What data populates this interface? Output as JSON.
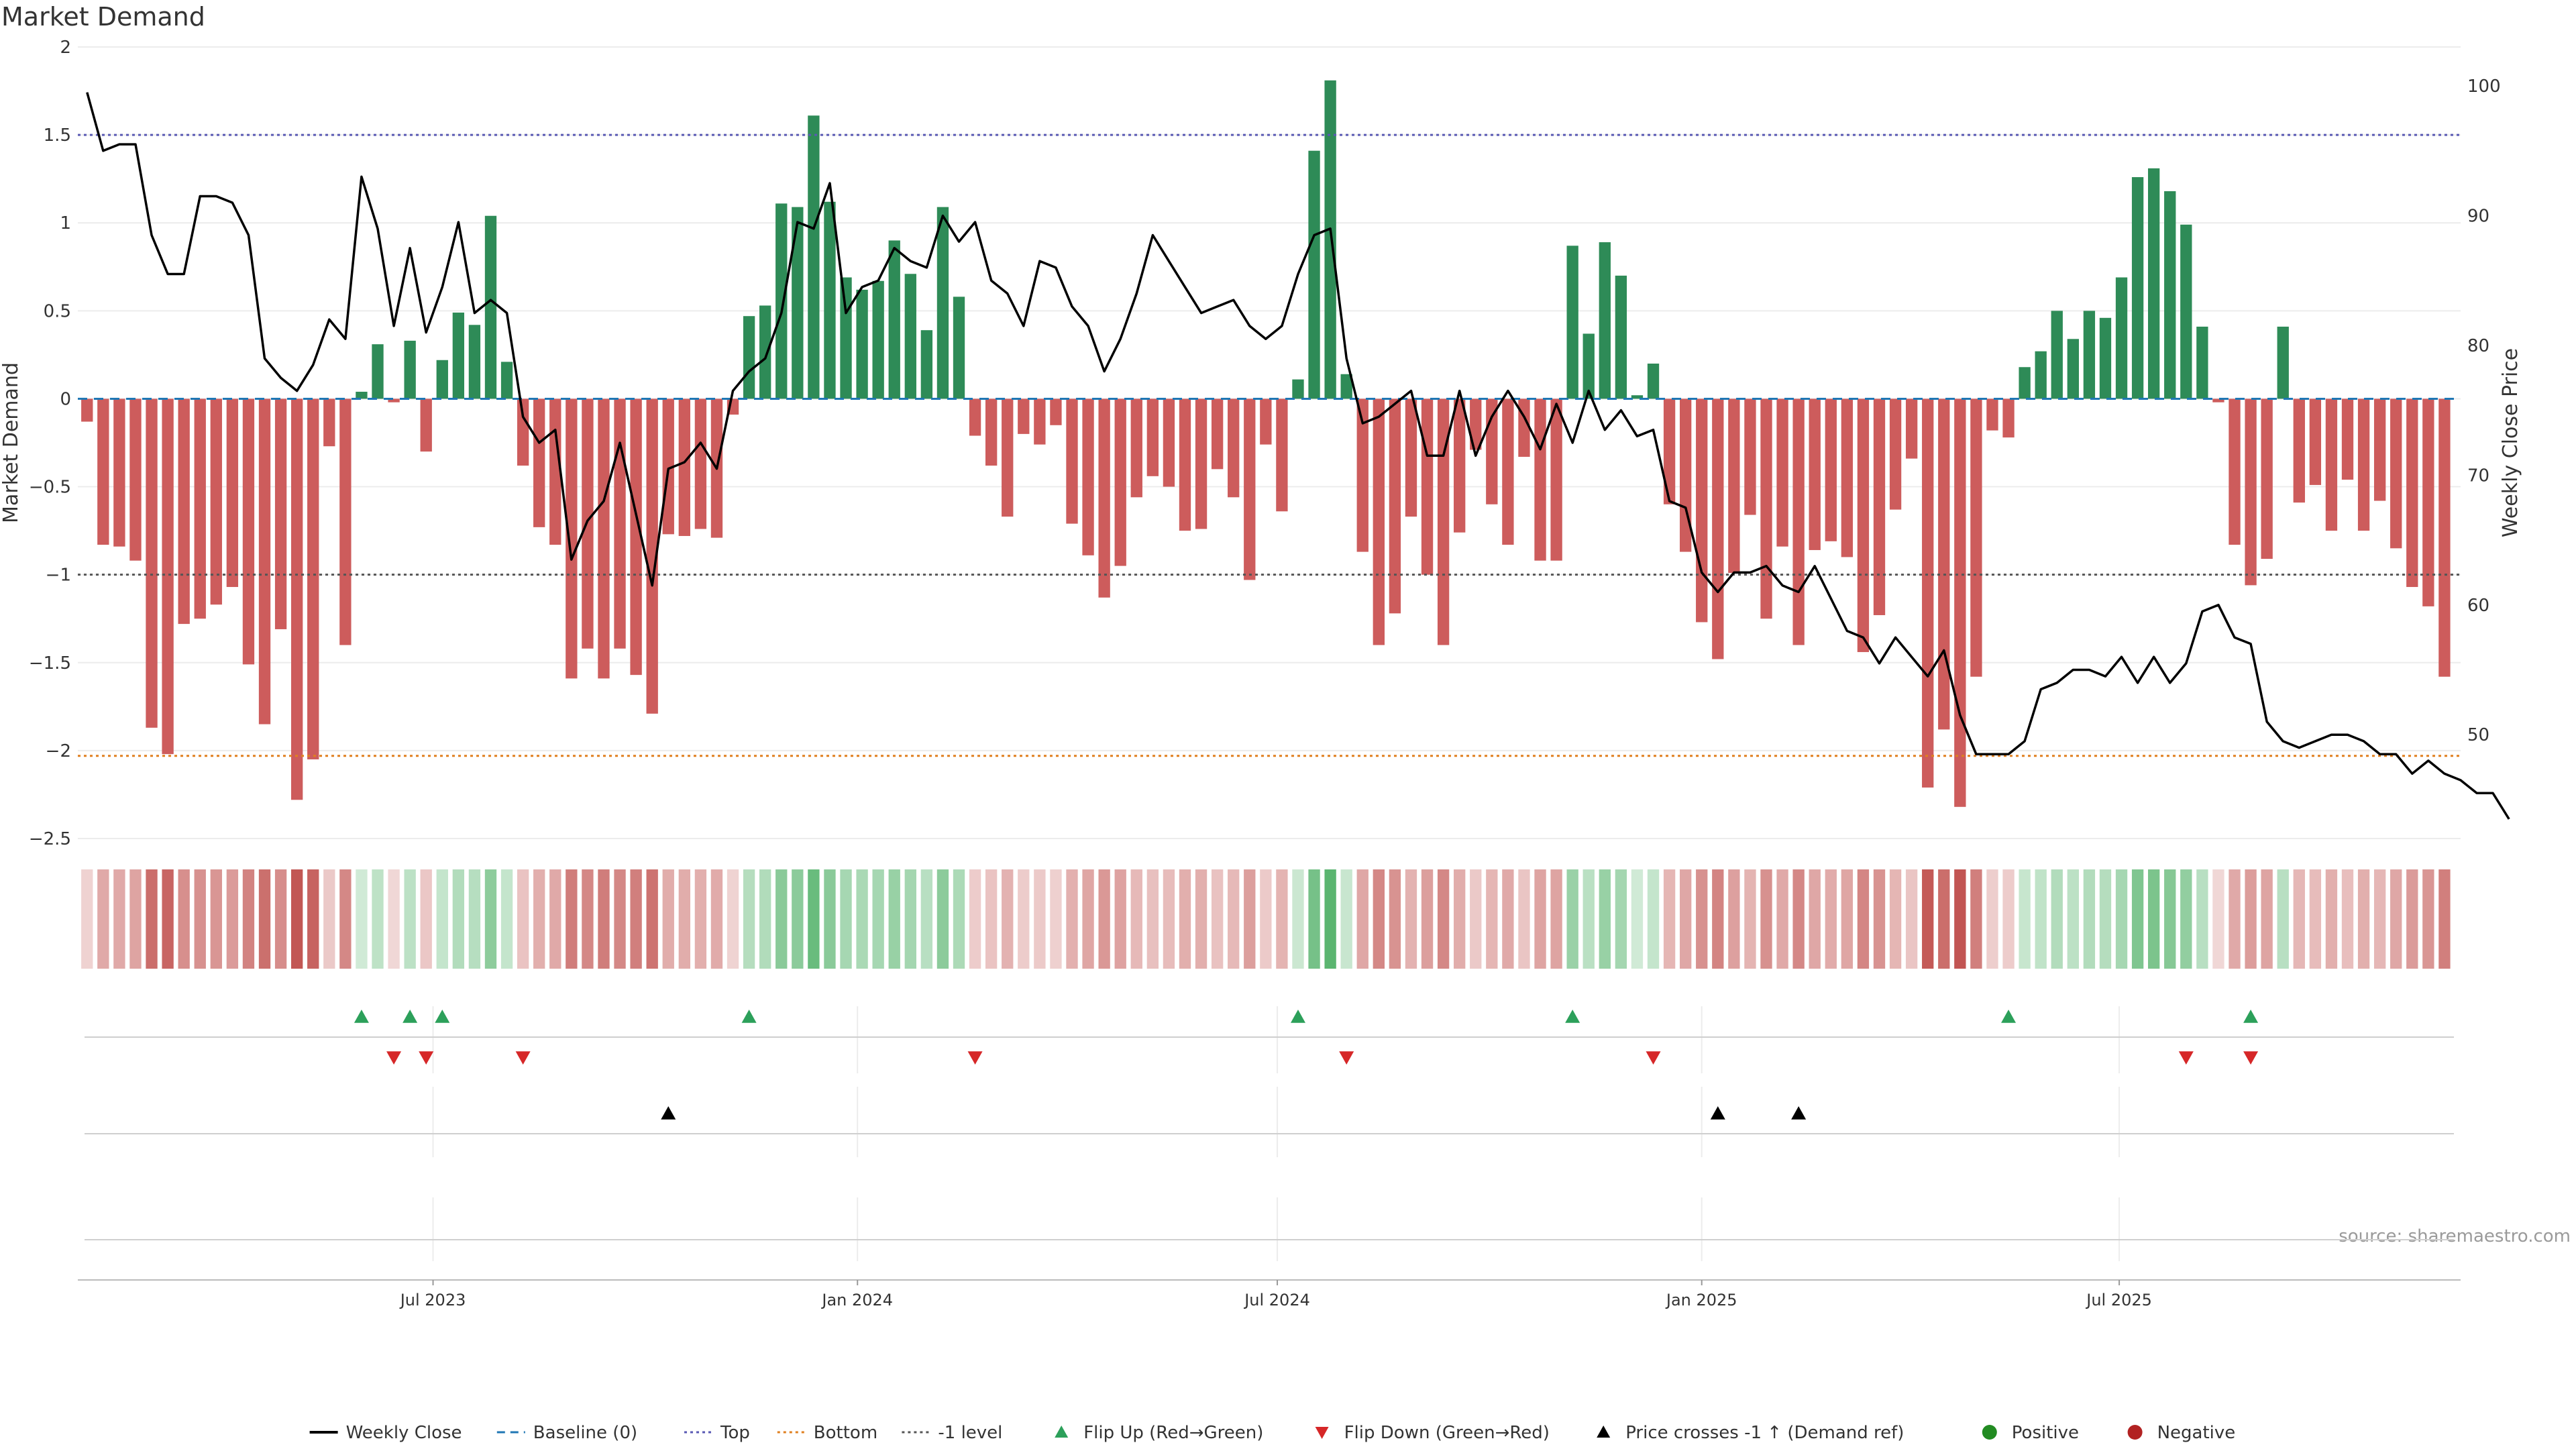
{
  "chart_data": {
    "type": "bar",
    "title": "Market Demand",
    "ylabel": "Market Demand",
    "y2label": "Weekly Close Price",
    "ylim": [
      -2.5,
      2
    ],
    "y2lim": [
      42,
      103
    ],
    "yticks": [
      2,
      1.5,
      1,
      0.5,
      0,
      -0.5,
      -1,
      -1.5,
      -2,
      -2.5
    ],
    "ytick_labels": [
      "2",
      "1.5",
      "1",
      "0.5",
      "0",
      "−0.5",
      "−1",
      "−1.5",
      "−2",
      "−2.5"
    ],
    "y2ticks": [
      100,
      90,
      80,
      70,
      60,
      50
    ],
    "y2tick_labels": [
      "100",
      "90",
      "80",
      "70",
      "60",
      "50"
    ],
    "xlim": [
      "2023-01-28",
      "2025-11-26"
    ],
    "xticks": [
      "2023-07-01",
      "2024-01-01",
      "2024-07-01",
      "2025-01-01",
      "2025-07-01"
    ],
    "xtick_labels": [
      "Jul 2023",
      "Jan 2024",
      "Jul 2024",
      "Jan 2025",
      "Jul 2025"
    ],
    "start_week": "2023-02-01",
    "reference_lines": {
      "top": 1.5,
      "bottom": -2.03,
      "minus_one": -1,
      "baseline": 0
    },
    "demand": [
      -0.13,
      -0.83,
      -0.84,
      -0.92,
      -1.87,
      -2.02,
      -1.28,
      -1.25,
      -1.17,
      -1.07,
      -1.51,
      -1.85,
      -1.31,
      -2.28,
      -2.05,
      -0.27,
      -1.4,
      0.04,
      0.31,
      -0.02,
      0.33,
      -0.3,
      0.22,
      0.49,
      0.42,
      1.04,
      0.21,
      -0.38,
      -0.73,
      -0.83,
      -1.59,
      -1.42,
      -1.59,
      -1.42,
      -1.57,
      -1.79,
      -0.77,
      -0.78,
      -0.74,
      -0.79,
      -0.09,
      0.47,
      0.53,
      1.11,
      1.09,
      1.61,
      1.12,
      0.69,
      0.62,
      0.67,
      0.9,
      0.71,
      0.39,
      1.09,
      0.58,
      -0.21,
      -0.38,
      -0.67,
      -0.2,
      -0.26,
      -0.15,
      -0.71,
      -0.89,
      -1.13,
      -0.95,
      -0.56,
      -0.44,
      -0.5,
      -0.75,
      -0.74,
      -0.4,
      -0.56,
      -1.03,
      -0.26,
      -0.64,
      0.11,
      1.41,
      1.81,
      0.14,
      -0.87,
      -1.4,
      -1.22,
      -0.67,
      -1.0,
      -1.4,
      -0.76,
      -0.29,
      -0.6,
      -0.83,
      -0.33,
      -0.92,
      -0.92,
      0.87,
      0.37,
      0.89,
      0.7,
      0.02,
      0.2,
      -0.6,
      -0.87,
      -1.27,
      -1.48,
      -0.99,
      -0.66,
      -1.25,
      -0.84,
      -1.4,
      -0.86,
      -0.81,
      -0.9,
      -1.44,
      -1.23,
      -0.63,
      -0.34,
      -2.21,
      -1.88,
      -2.32,
      -1.58,
      -0.18,
      -0.22,
      0.18,
      0.27,
      0.5,
      0.34,
      0.5,
      0.46,
      0.69,
      1.26,
      1.31,
      1.18,
      0.99,
      0.41,
      -0.02,
      -0.83,
      -1.06,
      -0.91,
      0.41,
      -0.59,
      -0.49,
      -0.75,
      -0.46,
      -0.75,
      -0.58,
      -0.85,
      -1.07,
      -1.18,
      -1.58
    ],
    "close": [
      99.5,
      95,
      95.5,
      95.5,
      88.5,
      85.5,
      85.5,
      91.5,
      91.5,
      91,
      88.5,
      79,
      77.5,
      76.5,
      78.5,
      82,
      80.5,
      93,
      89,
      81.5,
      87.5,
      81,
      84.5,
      89.5,
      82.5,
      83.5,
      82.5,
      74.5,
      72.5,
      73.5,
      63.5,
      66.5,
      68,
      72.5,
      67,
      61.5,
      70.5,
      71,
      72.5,
      70.5,
      76.5,
      78,
      79,
      82.5,
      89.5,
      89,
      92.5,
      82.5,
      84.5,
      85,
      87.5,
      86.5,
      86,
      90,
      88,
      89.5,
      85,
      84,
      81.5,
      86.5,
      86,
      83,
      81.5,
      78,
      80.5,
      84,
      88.5,
      86.5,
      84.5,
      82.5,
      83,
      83.5,
      81.5,
      80.5,
      81.5,
      85.5,
      88.5,
      89,
      79,
      74,
      74.5,
      75.5,
      76.5,
      71.5,
      71.5,
      76.5,
      71.5,
      74.5,
      76.5,
      74.5,
      72,
      75.5,
      72.5,
      76.5,
      73.5,
      75,
      73,
      73.5,
      68,
      67.5,
      62.5,
      61,
      62.5,
      62.5,
      63,
      61.5,
      61,
      63,
      60.5,
      58,
      57.5,
      55.5,
      57.5,
      56,
      54.5,
      56.5,
      51.5,
      48.5,
      48.5,
      48.5,
      49.5,
      53.5,
      54,
      55,
      55,
      54.5,
      56,
      54,
      56,
      54,
      55.5,
      59.5,
      60,
      57.5,
      57,
      51,
      49.5,
      49,
      49.5,
      50,
      50,
      49.5,
      48.5,
      48.5,
      47,
      48,
      47,
      46.5,
      45.5,
      45.5,
      43.5
    ],
    "flip_up_weeks": [
      17,
      20,
      22,
      41,
      75,
      92,
      119,
      134
    ],
    "flip_down_weeks": [
      19,
      21,
      27,
      55,
      78,
      97,
      130,
      134
    ],
    "price_cross_weeks": [
      36,
      101,
      106
    ],
    "colors": {
      "positive": "#2e8b57",
      "negative": "#cd5c5c",
      "close_line": "#000000",
      "baseline": "#1f77b4",
      "top": "#5a5ab4",
      "bottom": "#e08020",
      "minus_one": "#555555",
      "flip_up": "#2ca05a",
      "flip_down": "#d62728",
      "price_cross": "#000000",
      "positive_dot": "#228b22",
      "negative_dot": "#b22222"
    },
    "annotation": "source: sharemaestro.com",
    "legend_position": "bottom-center",
    "legend": [
      {
        "label": "Weekly Close",
        "kind": "line",
        "color": "#000000"
      },
      {
        "label": "Baseline (0)",
        "kind": "dash",
        "color": "#1f77b4"
      },
      {
        "label": "Top",
        "kind": "dot",
        "color": "#5a5ab4"
      },
      {
        "label": "Bottom",
        "kind": "dot",
        "color": "#e08020"
      },
      {
        "label": "-1 level",
        "kind": "dot",
        "color": "#555555"
      },
      {
        "label": "Flip Up (Red→Green)",
        "kind": "tri-up",
        "color": "#2ca05a"
      },
      {
        "label": "Flip Down (Green→Red)",
        "kind": "tri-down",
        "color": "#d62728"
      },
      {
        "label": "Price crosses -1 ↑ (Demand ref)",
        "kind": "tri-up",
        "color": "#000000"
      },
      {
        "label": "Positive",
        "kind": "circle",
        "color": "#228b22"
      },
      {
        "label": "Negative",
        "kind": "circle",
        "color": "#b22222"
      }
    ]
  }
}
